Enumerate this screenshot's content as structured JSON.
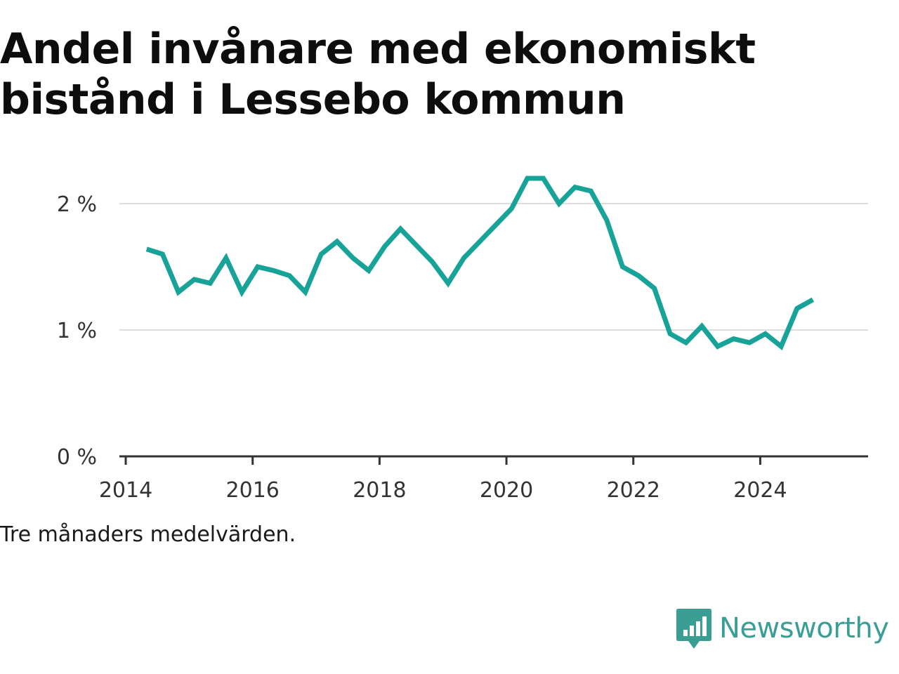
{
  "title": "Andel invånare med ekonomiskt bistånd i Lessebo kommun",
  "note": "Tre månaders medelvärden.",
  "brand": {
    "name": "Newsworthy",
    "logo_icon": "bar-chart-speech-bubble-icon",
    "color": "#3a9e95"
  },
  "colors": {
    "line": "#17a398",
    "grid": "#dddddd",
    "axis": "#333333"
  },
  "chart_data": {
    "type": "line",
    "title": "Andel invånare med ekonomiskt bistånd i Lessebo kommun",
    "xlabel": "",
    "ylabel": "",
    "xlim": [
      2013.9,
      2025.7
    ],
    "ylim": [
      0,
      2.5
    ],
    "x_ticks": [
      2014,
      2016,
      2018,
      2020,
      2022,
      2024
    ],
    "x_tick_labels": [
      "2014",
      "2016",
      "2018",
      "2020",
      "2022",
      "2024"
    ],
    "y_ticks": [
      0,
      1,
      2
    ],
    "y_tick_labels": [
      "0 %",
      "1 %",
      "2 %"
    ],
    "grid": true,
    "series": [
      {
        "name": "",
        "x": [
          2014.33,
          2014.58,
          2014.83,
          2015.08,
          2015.33,
          2015.58,
          2015.83,
          2016.08,
          2016.33,
          2016.58,
          2016.83,
          2017.08,
          2017.33,
          2017.58,
          2017.83,
          2018.08,
          2018.33,
          2018.58,
          2018.83,
          2019.08,
          2019.33,
          2019.58,
          2019.83,
          2020.08,
          2020.33,
          2020.58,
          2020.83,
          2021.08,
          2021.33,
          2021.58,
          2021.83,
          2022.08,
          2022.33,
          2022.58,
          2022.83,
          2023.08,
          2023.33,
          2023.58,
          2023.83,
          2024.08,
          2024.33,
          2024.58,
          2024.83
        ],
        "y": [
          1.64,
          1.6,
          1.3,
          1.4,
          1.37,
          1.57,
          1.3,
          1.5,
          1.47,
          1.43,
          1.3,
          1.6,
          1.7,
          1.57,
          1.47,
          1.66,
          1.8,
          1.67,
          1.54,
          1.37,
          1.57,
          1.7,
          1.83,
          1.96,
          2.2,
          2.2,
          2.0,
          2.13,
          2.1,
          1.87,
          1.5,
          1.43,
          1.33,
          0.97,
          0.9,
          1.03,
          0.87,
          0.93,
          0.9,
          0.97,
          0.87,
          1.17,
          1.24
        ]
      }
    ]
  }
}
